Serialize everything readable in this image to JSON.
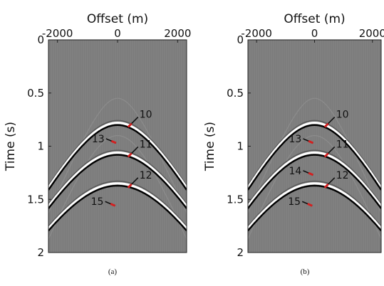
{
  "chart_data": [
    {
      "type": "seismic-gather",
      "caption": "(a)",
      "xlabel": "Offset (m)",
      "ylabel": "Time (s)",
      "xlim": [
        -2300,
        2300
      ],
      "ylim": [
        0,
        2
      ],
      "x_ticks": [
        -2000,
        0,
        2000
      ],
      "y_ticks": [
        0,
        0.5,
        1,
        1.5,
        2
      ],
      "x_ticks_position": "top",
      "y_reversed": true,
      "events": [
        {
          "apex_time": 0.78,
          "velocity": 2000
        },
        {
          "apex_time": 1.06,
          "velocity": 2000
        },
        {
          "apex_time": 1.35,
          "velocity": 2000
        }
      ],
      "arrows": [
        {
          "label": "10",
          "x": 350,
          "t": 0.82,
          "color": "#d42020"
        },
        {
          "label": "11",
          "x": 350,
          "t": 1.1,
          "color": "#d42020"
        },
        {
          "label": "12",
          "x": 350,
          "t": 1.39,
          "color": "#d42020"
        },
        {
          "label": "13",
          "x": -50,
          "t": 0.97,
          "color": "#d42020"
        },
        {
          "label": "15",
          "x": -80,
          "t": 1.56,
          "color": "#d42020"
        }
      ]
    },
    {
      "type": "seismic-gather",
      "caption": "(b)",
      "xlabel": "Offset (m)",
      "ylabel": "Time (s)",
      "xlim": [
        -2300,
        2300
      ],
      "ylim": [
        0,
        2
      ],
      "x_ticks": [
        -2000,
        0,
        2000
      ],
      "y_ticks": [
        0,
        0.5,
        1,
        1.5,
        2
      ],
      "x_ticks_position": "top",
      "y_reversed": true,
      "events": [
        {
          "apex_time": 0.78,
          "velocity": 2000
        },
        {
          "apex_time": 1.06,
          "velocity": 2000
        },
        {
          "apex_time": 1.35,
          "velocity": 2000
        }
      ],
      "arrows": [
        {
          "label": "10",
          "x": 350,
          "t": 0.82,
          "color": "#d42020"
        },
        {
          "label": "11",
          "x": 350,
          "t": 1.1,
          "color": "#d42020"
        },
        {
          "label": "12",
          "x": 350,
          "t": 1.39,
          "color": "#d42020"
        },
        {
          "label": "13",
          "x": -50,
          "t": 0.97,
          "color": "#d42020"
        },
        {
          "label": "14",
          "x": -50,
          "t": 1.27,
          "color": "#d42020"
        },
        {
          "label": "15",
          "x": -80,
          "t": 1.56,
          "color": "#d42020"
        }
      ]
    }
  ],
  "colors": {
    "background": "#808080",
    "peak": "#ffffff",
    "trough": "#000000",
    "arrow_head": "#d42020"
  }
}
